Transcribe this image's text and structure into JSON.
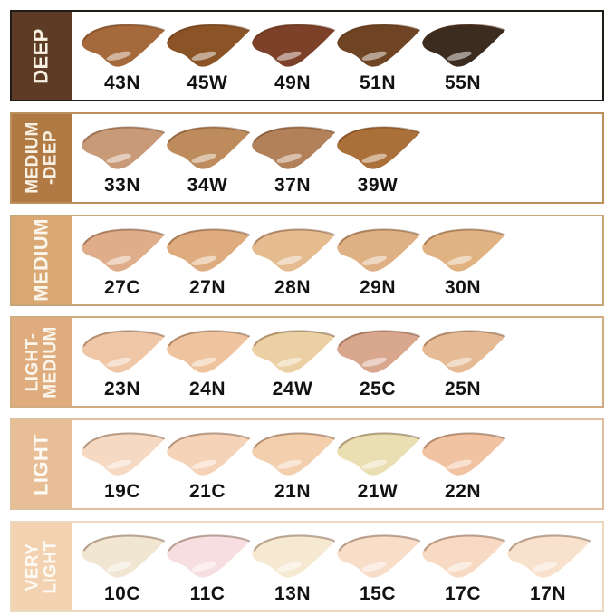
{
  "chart": {
    "rows": [
      {
        "range_label_lines": [
          "DEEP"
        ],
        "sidebar_color": "#5E3B25",
        "border_color": "#201B15",
        "label_color": "#F8F1E3",
        "shades": [
          {
            "code": "43N",
            "color": "#A5693C"
          },
          {
            "code": "45W",
            "color": "#8B5426"
          },
          {
            "code": "49N",
            "color": "#7D4129"
          },
          {
            "code": "51N",
            "color": "#6E4424"
          },
          {
            "code": "55N",
            "color": "#3C2C1F"
          }
        ]
      },
      {
        "range_label_lines": [
          "MEDIUM",
          "-DEEP"
        ],
        "sidebar_color": "#B17A44",
        "border_color": "#BB905E",
        "label_color": "#F8F1E3",
        "shades": [
          {
            "code": "33N",
            "color": "#C89A78"
          },
          {
            "code": "34W",
            "color": "#BD8B5C"
          },
          {
            "code": "37N",
            "color": "#B2815A"
          },
          {
            "code": "39W",
            "color": "#AB6F39"
          }
        ]
      },
      {
        "range_label_lines": [
          "MEDIUM"
        ],
        "sidebar_color": "#DAA873",
        "border_color": "#C7A77A",
        "label_color": "#FBF6EC",
        "shades": [
          {
            "code": "27C",
            "color": "#DFAD8A"
          },
          {
            "code": "27N",
            "color": "#DEAC7E"
          },
          {
            "code": "28N",
            "color": "#E5BC90"
          },
          {
            "code": "29N",
            "color": "#DFB083"
          },
          {
            "code": "30N",
            "color": "#E1B383"
          }
        ]
      },
      {
        "range_label_lines": [
          "LIGHT-",
          "MEDIUM"
        ],
        "sidebar_color": "#DFAC7D",
        "border_color": "#D1AB82",
        "label_color": "#FBF6EC",
        "shades": [
          {
            "code": "23N",
            "color": "#EFC6A6"
          },
          {
            "code": "24N",
            "color": "#EFC39E"
          },
          {
            "code": "24W",
            "color": "#EAD0A2"
          },
          {
            "code": "25C",
            "color": "#D9A68E"
          },
          {
            "code": "25N",
            "color": "#E5BA95"
          }
        ]
      },
      {
        "range_label_lines": [
          "LIGHT"
        ],
        "sidebar_color": "#E7BE96",
        "border_color": "#DFC19E",
        "label_color": "#FDFAF4",
        "shades": [
          {
            "code": "19C",
            "color": "#F5D9C2"
          },
          {
            "code": "21C",
            "color": "#F4D3B8"
          },
          {
            "code": "21N",
            "color": "#F3CFAE"
          },
          {
            "code": "21W",
            "color": "#EADFB2"
          },
          {
            "code": "22N",
            "color": "#F2C3A3"
          }
        ]
      },
      {
        "range_label_lines": [
          "VERY",
          "LIGHT"
        ],
        "sidebar_color": "#F2D2B0",
        "border_color": "#ECD9BD",
        "label_color": "#FDFAF4",
        "shades": [
          {
            "code": "10C",
            "color": "#F1E6D2"
          },
          {
            "code": "11C",
            "color": "#F7DFE1"
          },
          {
            "code": "13N",
            "color": "#F6E9D1"
          },
          {
            "code": "15C",
            "color": "#F8DDC9"
          },
          {
            "code": "17C",
            "color": "#F8DAC4"
          },
          {
            "code": "17N",
            "color": "#F9E2CD"
          }
        ]
      }
    ]
  },
  "chart_data": {
    "type": "table",
    "title": "Foundation shade range chart",
    "categories": [
      "DEEP",
      "MEDIUM-DEEP",
      "MEDIUM",
      "LIGHT-MEDIUM",
      "LIGHT",
      "VERY LIGHT"
    ],
    "rows": [
      {
        "range": "DEEP",
        "shade_codes": [
          "43N",
          "45W",
          "49N",
          "51N",
          "55N"
        ]
      },
      {
        "range": "MEDIUM-DEEP",
        "shade_codes": [
          "33N",
          "34W",
          "37N",
          "39W"
        ]
      },
      {
        "range": "MEDIUM",
        "shade_codes": [
          "27C",
          "27N",
          "28N",
          "29N",
          "30N"
        ]
      },
      {
        "range": "LIGHT-MEDIUM",
        "shade_codes": [
          "23N",
          "24N",
          "24W",
          "25C",
          "25N"
        ]
      },
      {
        "range": "LIGHT",
        "shade_codes": [
          "19C",
          "21C",
          "21N",
          "21W",
          "22N"
        ]
      },
      {
        "range": "VERY LIGHT",
        "shade_codes": [
          "10C",
          "11C",
          "13N",
          "15C",
          "17C",
          "17N"
        ]
      }
    ],
    "legend_position": "left-sidebars",
    "grid": false
  }
}
